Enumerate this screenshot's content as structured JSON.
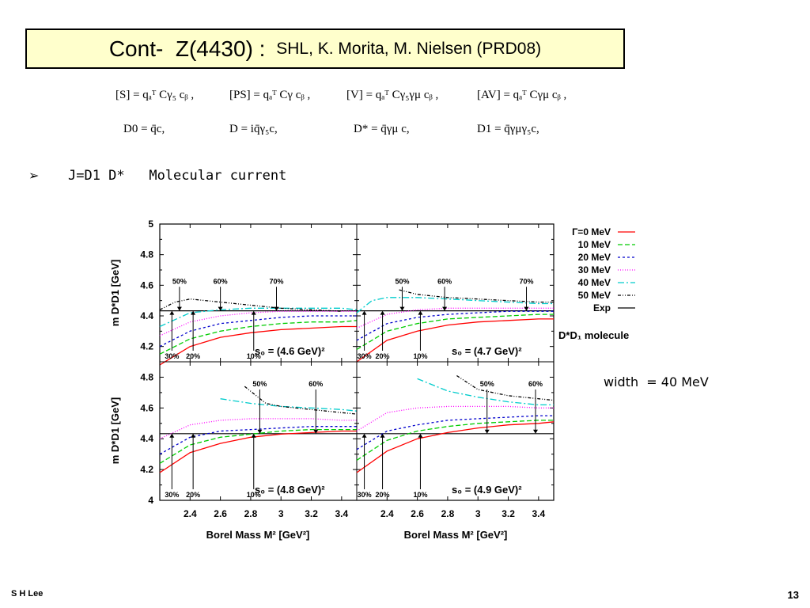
{
  "title": {
    "main": "Cont-  Z(4430) : ",
    "sub": "SHL, K. Morita, M. Nielsen (PRD08)"
  },
  "equations": {
    "row1": [
      "[S] = qₐᵀ Cγ₅ cᵦ ,",
      "[PS] = qₐᵀ Cγ cᵦ ,",
      "[V] = qₐᵀ Cγ₅γμ cᵦ ,",
      "[AV] = qₐᵀ Cγμ cᵦ ,"
    ],
    "row2": [
      "D0 = q̄c,",
      "D = iq̄γ₅c,",
      "D* = q̄γμ c,",
      "D1 = q̄γμγ₅c,"
    ]
  },
  "bullet": {
    "symbol": "➢",
    "text": "J=D1 D*   Molecular current"
  },
  "width_note": "width  = 40 MeV",
  "footer": {
    "author": "S H Lee",
    "page": "13"
  },
  "chart_data": {
    "type": "line",
    "xlabel": "Borel Mass M² [GeV²]",
    "ylabel": "m D*D1 [GeV]",
    "xlim": [
      2.2,
      3.5
    ],
    "xticks": [
      "2.4",
      "2.6",
      "2.8",
      "3",
      "3.2",
      "3.4"
    ],
    "exp_value": 4.433,
    "molecule_label": "D*D₁ molecule",
    "legend": [
      {
        "label": "Γ=0 MeV",
        "color": "#ff0000",
        "dash": ""
      },
      {
        "label": "10 MeV",
        "color": "#00cc00",
        "dash": "6,3"
      },
      {
        "label": "20 MeV",
        "color": "#0000cc",
        "dash": "3,3"
      },
      {
        "label": "30 MeV",
        "color": "#ff00ff",
        "dash": "1,2"
      },
      {
        "label": "40 MeV",
        "color": "#00cccc",
        "dash": "8,3,2,3"
      },
      {
        "label": "50 MeV",
        "color": "#000000",
        "dash": "4,2,1,2,1,2"
      },
      {
        "label": "Exp",
        "color": "#000000",
        "dash": ""
      }
    ],
    "panels": [
      {
        "s0_label": "s₀ = (4.6 GeV)²",
        "ylim": [
          4.1,
          5.0
        ],
        "yticks": [
          "4.2",
          "4.4",
          "4.6",
          "4.8",
          "5"
        ],
        "arrows_top": [
          {
            "x": 2.33,
            "label": "50%",
            "y": 4.59
          },
          {
            "x": 2.6,
            "label": "60%",
            "y": 4.59
          },
          {
            "x": 2.97,
            "label": "70%",
            "y": 4.59
          }
        ],
        "arrows_bottom": [
          {
            "x": 2.28,
            "label": "30%"
          },
          {
            "x": 2.42,
            "label": "20%"
          },
          {
            "x": 2.82,
            "label": "10%"
          }
        ],
        "series": [
          {
            "x": [
              2.2,
              2.4,
              2.6,
              2.8,
              3.0,
              3.2,
              3.4,
              3.5
            ],
            "y": [
              4.08,
              4.2,
              4.26,
              4.29,
              4.31,
              4.32,
              4.33,
              4.33
            ]
          },
          {
            "x": [
              2.2,
              2.4,
              2.6,
              2.8,
              3.0,
              3.2,
              3.4,
              3.5
            ],
            "y": [
              4.15,
              4.25,
              4.3,
              4.33,
              4.35,
              4.36,
              4.36,
              4.37
            ]
          },
          {
            "x": [
              2.2,
              2.4,
              2.6,
              2.8,
              3.0,
              3.2,
              3.4,
              3.5
            ],
            "y": [
              4.2,
              4.3,
              4.35,
              4.37,
              4.39,
              4.4,
              4.4,
              4.4
            ]
          },
          {
            "x": [
              2.2,
              2.4,
              2.6,
              2.8,
              3.0,
              3.2,
              3.4,
              3.5
            ],
            "y": [
              4.27,
              4.36,
              4.4,
              4.42,
              4.43,
              4.43,
              4.43,
              4.43
            ]
          },
          {
            "x": [
              2.2,
              2.4,
              2.6,
              2.8,
              3.0,
              3.2,
              3.4,
              3.5
            ],
            "y": [
              4.33,
              4.42,
              4.44,
              4.45,
              4.45,
              4.45,
              4.45,
              4.44
            ]
          },
          {
            "x": [
              2.2,
              2.3,
              2.4,
              2.6,
              2.8,
              3.0,
              3.2,
              3.4
            ],
            "y": [
              4.44,
              4.49,
              4.51,
              4.49,
              4.47,
              4.45,
              4.44,
              4.43
            ]
          }
        ]
      },
      {
        "s0_label": "s₀ = (4.7 GeV)²",
        "ylim": [
          4.1,
          5.0
        ],
        "yticks": [],
        "arrows_top": [
          {
            "x": 2.5,
            "label": "50%",
            "y": 4.59
          },
          {
            "x": 2.78,
            "label": "60%",
            "y": 4.59
          },
          {
            "x": 3.32,
            "label": "70%",
            "y": 4.59
          }
        ],
        "arrows_bottom": [
          {
            "x": 2.25,
            "label": "30%"
          },
          {
            "x": 2.37,
            "label": "20%"
          },
          {
            "x": 2.62,
            "label": "10%"
          }
        ],
        "series": [
          {
            "x": [
              2.2,
              2.4,
              2.6,
              2.8,
              3.0,
              3.2,
              3.4,
              3.5
            ],
            "y": [
              4.1,
              4.24,
              4.3,
              4.34,
              4.36,
              4.37,
              4.38,
              4.38
            ]
          },
          {
            "x": [
              2.2,
              2.4,
              2.6,
              2.8,
              3.0,
              3.2,
              3.4,
              3.5
            ],
            "y": [
              4.18,
              4.3,
              4.35,
              4.38,
              4.39,
              4.4,
              4.41,
              4.41
            ]
          },
          {
            "x": [
              2.2,
              2.4,
              2.6,
              2.8,
              3.0,
              3.2,
              3.4,
              3.5
            ],
            "y": [
              4.24,
              4.35,
              4.39,
              4.41,
              4.42,
              4.43,
              4.43,
              4.43
            ]
          },
          {
            "x": [
              2.2,
              2.4,
              2.6,
              2.8,
              3.0,
              3.2,
              3.4,
              3.5
            ],
            "y": [
              4.32,
              4.41,
              4.44,
              4.45,
              4.45,
              4.45,
              4.45,
              4.45
            ]
          },
          {
            "x": [
              2.2,
              2.3,
              2.4,
              2.6,
              2.8,
              3.0,
              3.2,
              3.4,
              3.5
            ],
            "y": [
              4.42,
              4.5,
              4.52,
              4.52,
              4.51,
              4.5,
              4.49,
              4.48,
              4.48
            ]
          },
          {
            "x": [
              2.48,
              2.6,
              2.8,
              3.0,
              3.2,
              3.4,
              3.5
            ],
            "y": [
              4.57,
              4.54,
              4.52,
              4.51,
              4.5,
              4.49,
              4.49
            ]
          }
        ]
      },
      {
        "s0_label": "s₀ = (4.8 GeV)²",
        "ylim": [
          4.0,
          4.9
        ],
        "yticks": [
          "4",
          "4.2",
          "4.4",
          "4.6",
          "4.8"
        ],
        "arrows_top": [
          {
            "x": 2.86,
            "label": "50%",
            "y": 4.72
          },
          {
            "x": 3.23,
            "label": "60%",
            "y": 4.72
          }
        ],
        "arrows_bottom": [
          {
            "x": 2.28,
            "label": "30%"
          },
          {
            "x": 2.42,
            "label": "20%"
          },
          {
            "x": 2.82,
            "label": "10%"
          }
        ],
        "series": [
          {
            "x": [
              2.2,
              2.4,
              2.6,
              2.8,
              3.0,
              3.2,
              3.4,
              3.5
            ],
            "y": [
              4.18,
              4.31,
              4.37,
              4.41,
              4.43,
              4.44,
              4.45,
              4.45
            ]
          },
          {
            "x": [
              2.2,
              2.4,
              2.6,
              2.8,
              3.0,
              3.2,
              3.4,
              3.5
            ],
            "y": [
              4.24,
              4.36,
              4.41,
              4.43,
              4.45,
              4.46,
              4.46,
              4.46
            ]
          },
          {
            "x": [
              2.2,
              2.4,
              2.6,
              2.8,
              3.0,
              3.2,
              3.4,
              3.5
            ],
            "y": [
              4.3,
              4.41,
              4.45,
              4.46,
              4.47,
              4.48,
              4.48,
              4.48
            ]
          },
          {
            "x": [
              2.2,
              2.4,
              2.6,
              2.8,
              3.0,
              3.2,
              3.4,
              3.5
            ],
            "y": [
              4.4,
              4.49,
              4.52,
              4.53,
              4.53,
              4.53,
              4.52,
              4.52
            ]
          },
          {
            "x": [
              2.6,
              2.8,
              3.0,
              3.2,
              3.4,
              3.5
            ],
            "y": [
              4.66,
              4.63,
              4.61,
              4.6,
              4.59,
              4.58
            ]
          },
          {
            "x": [
              2.76,
              2.9,
              3.0,
              3.2,
              3.4,
              3.5
            ],
            "y": [
              4.74,
              4.63,
              4.61,
              4.59,
              4.57,
              4.56
            ]
          }
        ]
      },
      {
        "s0_label": "s₀ = (4.9 GeV)²",
        "ylim": [
          4.0,
          4.9
        ],
        "yticks": [],
        "arrows_top": [
          {
            "x": 3.06,
            "label": "50%",
            "y": 4.72
          },
          {
            "x": 3.38,
            "label": "60%",
            "y": 4.72
          }
        ],
        "arrows_bottom": [
          {
            "x": 2.25,
            "label": "30%"
          },
          {
            "x": 2.37,
            "label": "20%"
          },
          {
            "x": 2.62,
            "label": "10%"
          }
        ],
        "series": [
          {
            "x": [
              2.2,
              2.4,
              2.6,
              2.8,
              3.0,
              3.2,
              3.4,
              3.5
            ],
            "y": [
              4.18,
              4.32,
              4.4,
              4.44,
              4.47,
              4.49,
              4.5,
              4.51
            ]
          },
          {
            "x": [
              2.2,
              2.4,
              2.6,
              2.8,
              3.0,
              3.2,
              3.4,
              3.5
            ],
            "y": [
              4.26,
              4.39,
              4.45,
              4.48,
              4.5,
              4.51,
              4.52,
              4.52
            ]
          },
          {
            "x": [
              2.2,
              2.4,
              2.6,
              2.8,
              3.0,
              3.2,
              3.4,
              3.5
            ],
            "y": [
              4.33,
              4.45,
              4.49,
              4.52,
              4.53,
              4.54,
              4.55,
              4.55
            ]
          },
          {
            "x": [
              2.2,
              2.4,
              2.6,
              2.8,
              3.0,
              3.2,
              3.4,
              3.5
            ],
            "y": [
              4.45,
              4.57,
              4.6,
              4.61,
              4.61,
              4.61,
              4.6,
              4.6
            ]
          },
          {
            "x": [
              2.6,
              2.8,
              3.0,
              3.2,
              3.4,
              3.5
            ],
            "y": [
              4.79,
              4.71,
              4.67,
              4.64,
              4.62,
              4.62
            ]
          },
          {
            "x": [
              2.86,
              3.0,
              3.2,
              3.4,
              3.5
            ],
            "y": [
              4.81,
              4.72,
              4.68,
              4.66,
              4.65
            ]
          }
        ]
      }
    ]
  }
}
